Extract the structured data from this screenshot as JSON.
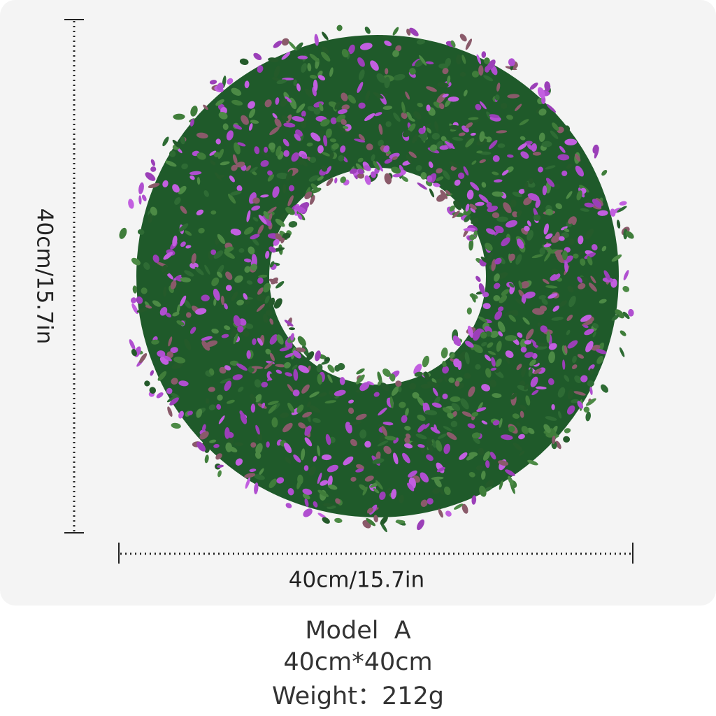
{
  "dimensions": {
    "height_label": "40cm/15.7in",
    "width_label": "40cm/15.7in"
  },
  "caption": {
    "model": "Model  A",
    "size": "40cm*40cm",
    "weight": "Weight：212g"
  }
}
